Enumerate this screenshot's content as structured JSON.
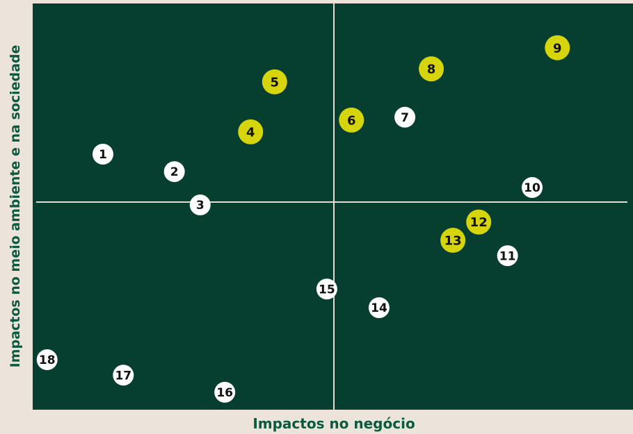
{
  "chart_data": {
    "type": "scatter",
    "xlabel": "Impactos no negócio",
    "ylabel": "Impactos no meio ambiente e na sociedade",
    "xlim": [
      0,
      100
    ],
    "ylim": [
      0,
      100
    ],
    "series": [
      {
        "color": "#ffffff",
        "labels": [
          "1",
          "2",
          "3",
          "7",
          "10",
          "11",
          "14",
          "15",
          "16",
          "17",
          "18"
        ],
        "x": [
          11.7,
          23.6,
          27.9,
          62.0,
          83.2,
          79.1,
          57.7,
          49.0,
          32.0,
          15.1,
          2.4
        ],
        "values": [
          62.9,
          58.6,
          50.4,
          72.0,
          54.7,
          37.9,
          25.1,
          29.7,
          4.3,
          8.5,
          12.3
        ]
      },
      {
        "color": "#d6d40a",
        "labels": [
          "4",
          "5",
          "6",
          "8",
          "9",
          "12",
          "13"
        ],
        "x": [
          36.3,
          40.3,
          53.1,
          66.4,
          87.4,
          74.3,
          70.0
        ],
        "values": [
          68.4,
          80.7,
          71.3,
          83.9,
          89.1,
          46.2,
          41.7
        ]
      }
    ]
  }
}
